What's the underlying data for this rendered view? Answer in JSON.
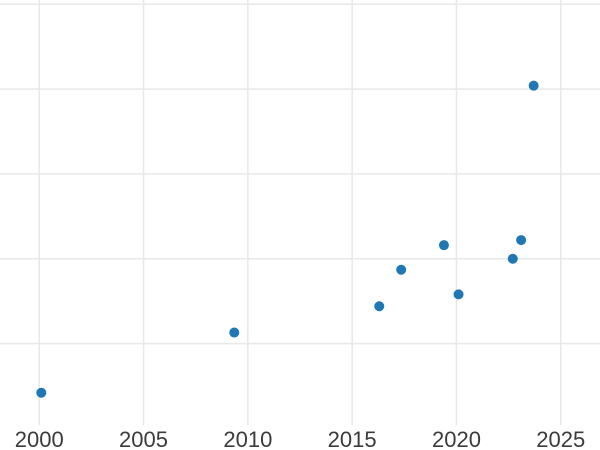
{
  "chart_data": {
    "type": "scatter",
    "title": "",
    "xlabel": "",
    "ylabel": "",
    "x_ticks": [
      2000,
      2005,
      2010,
      2015,
      2020,
      2025
    ],
    "x_tick_labels": [
      "2000",
      "2005",
      "2010",
      "2015",
      "2020",
      "2025"
    ],
    "y_gridline_values": [
      1,
      2,
      3,
      4,
      5
    ],
    "y_tick_labels_visible": false,
    "xlim": [
      1998.12,
      2026.88
    ],
    "ylim": [
      0.04,
      5.05
    ],
    "grid": true,
    "legend_position": "none",
    "points": [
      {
        "x": 2000.1,
        "y": 0.42
      },
      {
        "x": 2009.35,
        "y": 1.13
      },
      {
        "x": 2016.3,
        "y": 1.44
      },
      {
        "x": 2017.35,
        "y": 1.87
      },
      {
        "x": 2019.4,
        "y": 2.16
      },
      {
        "x": 2020.1,
        "y": 1.58
      },
      {
        "x": 2022.7,
        "y": 2.0
      },
      {
        "x": 2023.1,
        "y": 2.22
      },
      {
        "x": 2023.7,
        "y": 4.04
      }
    ],
    "colors": {
      "marker": "#1f77b4",
      "grid": "#e8e8e8",
      "tick_label": "#3b3b3b",
      "background": "#ffffff"
    },
    "marker_diameter_px": 10,
    "tick_font_size_px": 22
  }
}
